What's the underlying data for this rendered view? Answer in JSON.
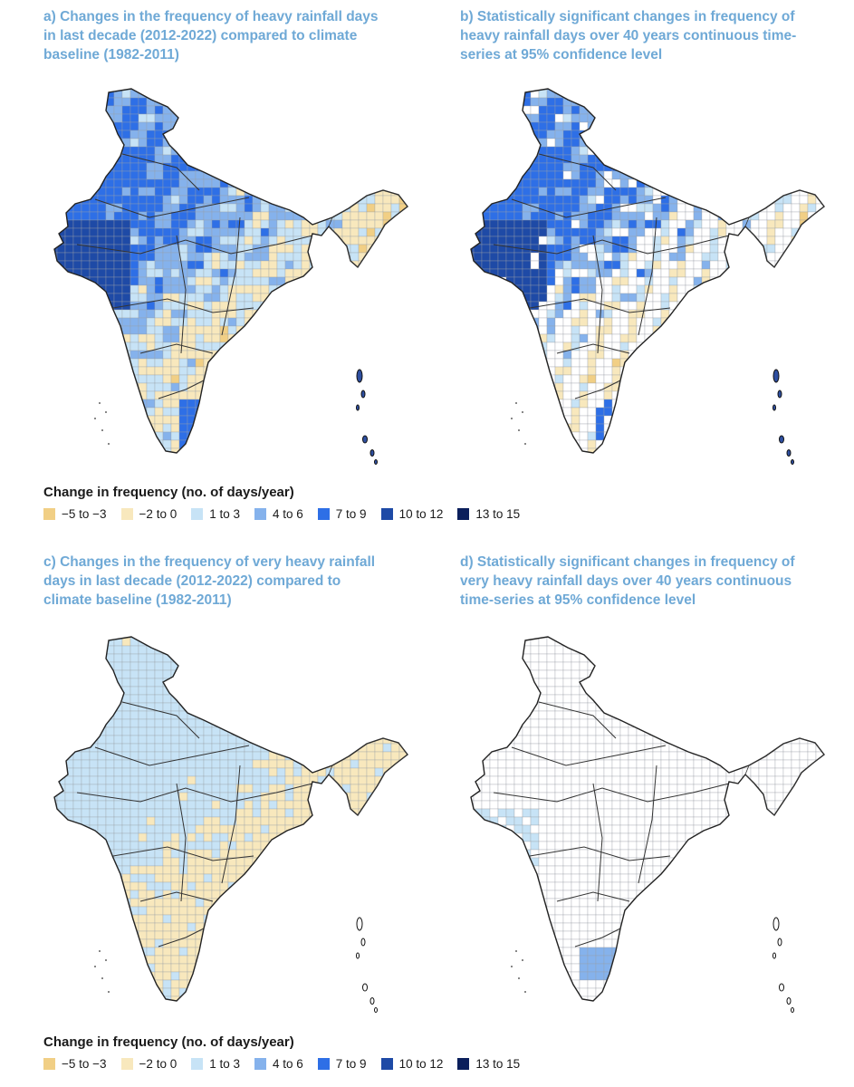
{
  "panels": [
    {
      "id": "a",
      "title_lines": [
        "a) Changes in the frequency of heavy rainfall days",
        "in last decade (2012-2022) compared to climate",
        "baseline (1982-2011)"
      ]
    },
    {
      "id": "b",
      "title_lines": [
        "b) Statistically significant changes in frequency of",
        "heavy rainfall days over 40 years continuous time-",
        "series at 95% confidence level"
      ]
    },
    {
      "id": "c",
      "title_lines": [
        "c) Changes in the frequency of very heavy rainfall",
        "days in last decade (2012-2022) compared to",
        "climate baseline (1982-2011)"
      ]
    },
    {
      "id": "d",
      "title_lines": [
        "d) Statistically significant changes in frequency of",
        "very heavy rainfall days over 40 years continuous",
        "time-series at 95% confidence level"
      ]
    }
  ],
  "legend": {
    "title": "Change in frequency (no. of days/year)",
    "items": [
      {
        "label": "−5 to −3",
        "color": "#f1cf85"
      },
      {
        "label": "−2 to 0",
        "color": "#f8e8bd"
      },
      {
        "label": "1 to 3",
        "color": "#c7e3f6"
      },
      {
        "label": "4 to 6",
        "color": "#85b2ec"
      },
      {
        "label": "7 to 9",
        "color": "#2e6fe6"
      },
      {
        "label": "10 to 12",
        "color": "#1e4aa6"
      },
      {
        "label": "13 to 15",
        "color": "#0b1f5c"
      }
    ]
  }
}
